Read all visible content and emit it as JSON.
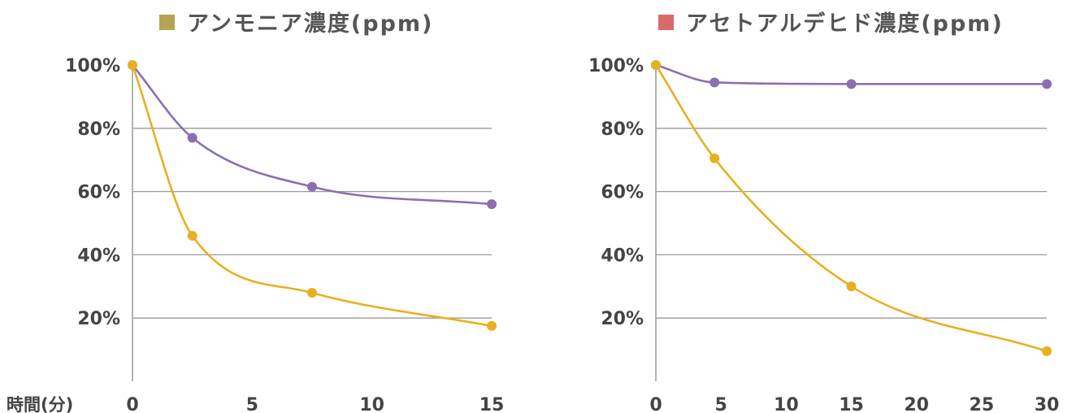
{
  "x_axis_label": "時間(分)",
  "chart_data": [
    {
      "type": "line",
      "title": "アンモニア濃度(ppm)",
      "legend_color": "#b5a352",
      "xlabel": "時間(分)",
      "ylabel": "",
      "xlim": [
        0,
        15
      ],
      "ylim": [
        0,
        100
      ],
      "x_ticks": [
        0,
        5,
        10,
        15
      ],
      "x_tick_labels": [
        "0",
        "5",
        "10",
        "15"
      ],
      "y_ticks": [
        20,
        40,
        60,
        80,
        100
      ],
      "y_tick_labels": [
        "20%",
        "40%",
        "60%",
        "80%",
        "100%"
      ],
      "grid": "horizontal",
      "series": [
        {
          "color": "#8a70b0",
          "x": [
            0,
            2.5,
            7.5,
            15
          ],
          "y": [
            100,
            77,
            61.5,
            56
          ]
        },
        {
          "color": "#e8b020",
          "x": [
            0,
            2.5,
            7.5,
            15
          ],
          "y": [
            100,
            46,
            28,
            17.5
          ]
        }
      ]
    },
    {
      "type": "line",
      "title": "アセトアルデヒド濃度(ppm)",
      "legend_color": "#d96a6a",
      "xlabel": "",
      "ylabel": "",
      "xlim": [
        0,
        30
      ],
      "ylim": [
        0,
        100
      ],
      "x_ticks": [
        0,
        5,
        10,
        15,
        20,
        25,
        30
      ],
      "x_tick_labels": [
        "0",
        "5",
        "10",
        "15",
        "20",
        "25",
        "30"
      ],
      "y_ticks": [
        20,
        40,
        60,
        80,
        100
      ],
      "y_tick_labels": [
        "20%",
        "40%",
        "60%",
        "80%",
        "100%"
      ],
      "grid": "horizontal",
      "series": [
        {
          "color": "#8a70b0",
          "x": [
            0,
            4.5,
            15,
            30
          ],
          "y": [
            100,
            94.5,
            94,
            94
          ]
        },
        {
          "color": "#e8b020",
          "x": [
            0,
            4.5,
            15,
            30
          ],
          "y": [
            100,
            70.5,
            30,
            9.5
          ]
        }
      ]
    }
  ]
}
